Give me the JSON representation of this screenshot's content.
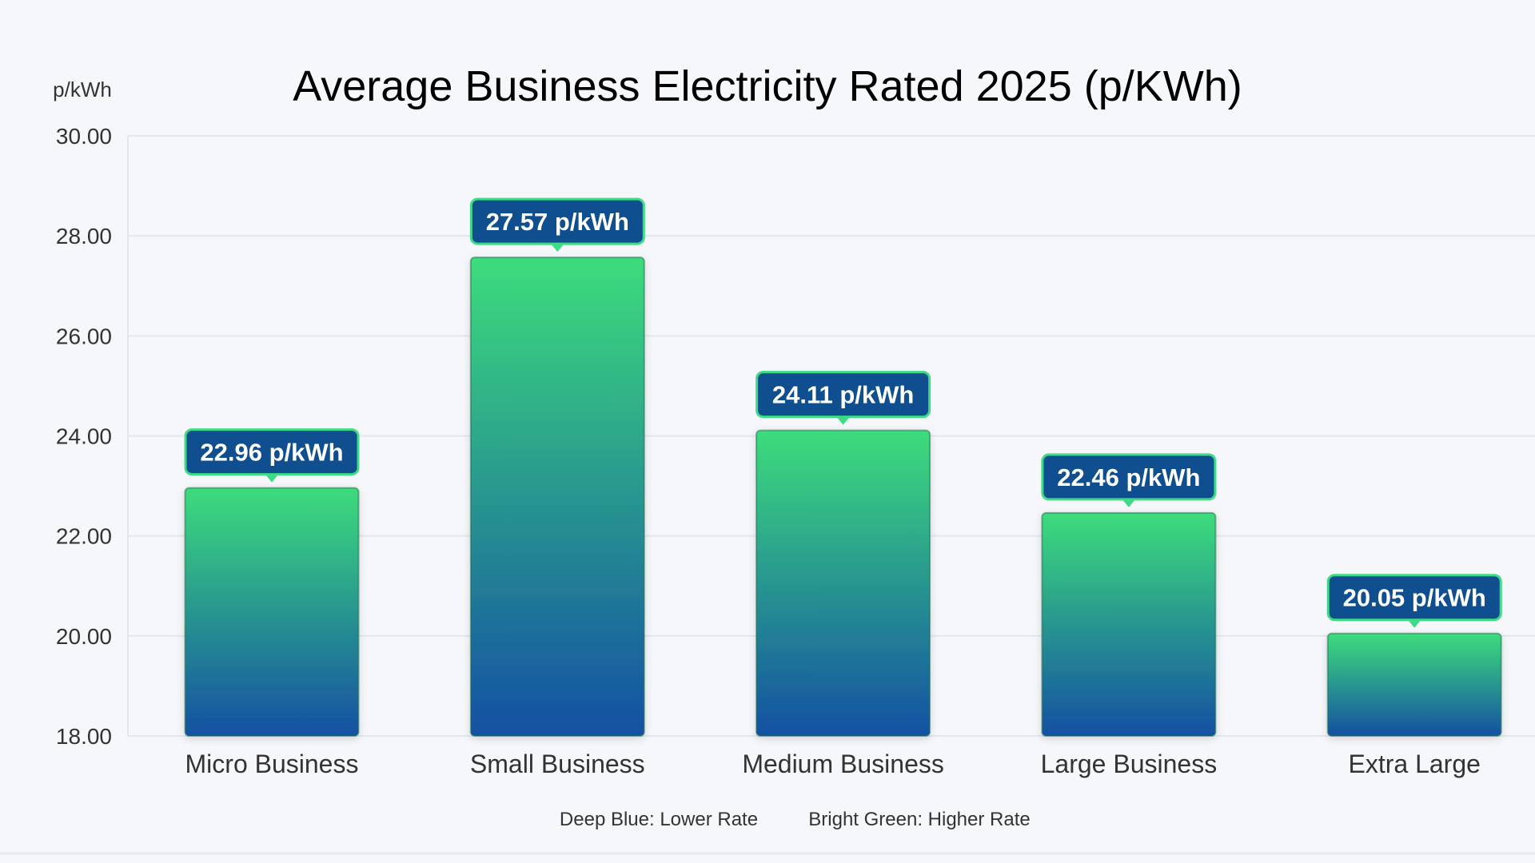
{
  "chart_data": {
    "type": "bar",
    "title": "Average Business Electricity Rated 2025 (p/KWh)",
    "ylabel": "p/kWh",
    "xlabel": "",
    "ylim": [
      18,
      30
    ],
    "yticks": [
      "18.00",
      "20.00",
      "22.00",
      "24.00",
      "26.00",
      "28.00",
      "30.00"
    ],
    "categories": [
      "Micro Business",
      "Small Business",
      "Medium Business",
      "Large Business",
      "Extra Large"
    ],
    "values": [
      22.96,
      27.57,
      24.11,
      22.46,
      20.05
    ],
    "data_labels": [
      "22.96 p/kWh",
      "27.57 p/kWh",
      "24.11 p/kWh",
      "22.46 p/kWh",
      "20.05 p/kWh"
    ],
    "grid": true,
    "legend": [
      "Deep Blue: Lower Rate",
      "Bright Green: Higher Rate"
    ],
    "legend_placement": "bottom",
    "colors": {
      "bar_top": "#3ddc7c",
      "bar_bottom": "#1450a3",
      "label_bg": "#0f4f8f",
      "label_border": "#3ddc84",
      "grid": "#e3e7ec"
    }
  }
}
